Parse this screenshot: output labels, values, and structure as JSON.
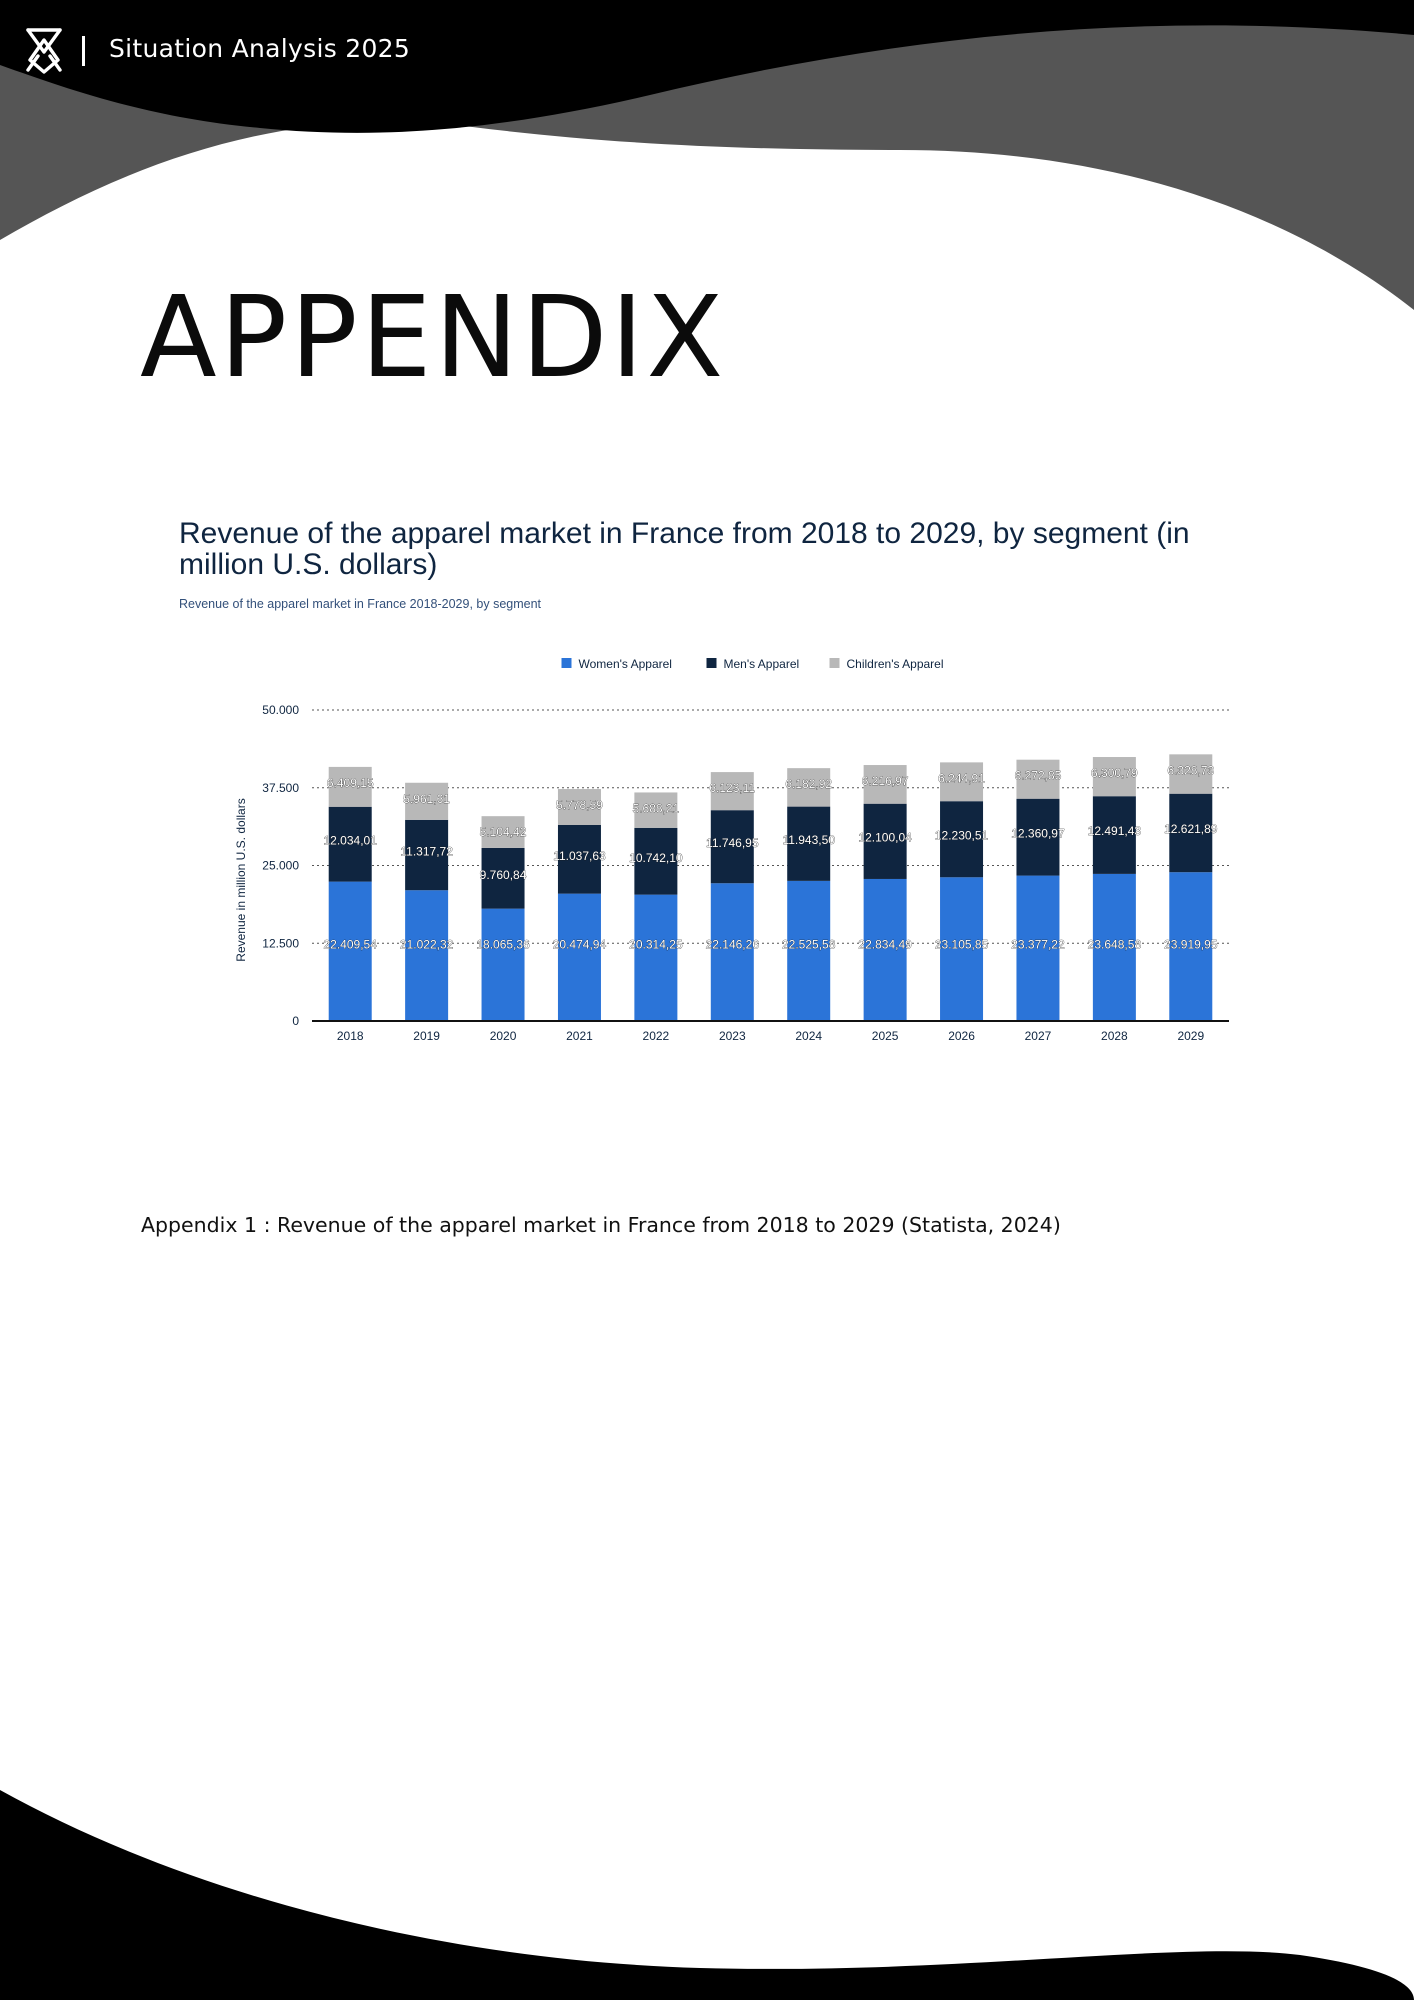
{
  "header": {
    "title": "Situation Analysis 2025",
    "logo_icon": "diamond-monogram-icon"
  },
  "page": {
    "heading": "APPENDIX",
    "caption": "Appendix 1 : Revenue of the apparel market in France from 2018 to 2029 (Statista, 2024)"
  },
  "colors": {
    "women": "#2b74d8",
    "men": "#0f2540",
    "children": "#b8b8b8",
    "header_black": "#000000",
    "header_gray": "#555555"
  },
  "chart_data": {
    "type": "bar",
    "stacked": true,
    "title": "Revenue of the apparel market in France from 2018 to 2029, by segment (in million U.S. dollars)",
    "subtitle": "Revenue of the apparel market in France 2018-2029, by segment",
    "xlabel": "",
    "ylabel": "Revenue in million U.S. dollars",
    "ylim": [
      0,
      50000
    ],
    "yticks": [
      0,
      12500,
      25000,
      37500,
      50000
    ],
    "ytick_labels": [
      "0",
      "12.500",
      "25.000",
      "37.500",
      "50.000"
    ],
    "grid": true,
    "legend_position": "top-center",
    "categories": [
      "2018",
      "2019",
      "2020",
      "2021",
      "2022",
      "2023",
      "2024",
      "2025",
      "2026",
      "2027",
      "2028",
      "2029"
    ],
    "series": [
      {
        "name": "Women's Apparel",
        "color": "#2b74d8",
        "values": [
          22409.54,
          21022.32,
          18065.36,
          20474.94,
          20314.25,
          22146.26,
          22525.58,
          22834.49,
          23105.85,
          23377.22,
          23648.58,
          23919.95
        ],
        "labels": [
          "22.409,54",
          "21.022,32",
          "18.065,36",
          "20.474,94",
          "20.314,25",
          "22.146,26",
          "22.525,58",
          "22.834,49",
          "23.105,85",
          "23.377,22",
          "23.648,58",
          "23.919,95"
        ]
      },
      {
        "name": "Men's Apparel",
        "color": "#0f2540",
        "values": [
          12034.01,
          11317.72,
          9760.84,
          11037.63,
          10742.1,
          11746.95,
          11943.5,
          12100.04,
          12230.51,
          12360.97,
          12491.43,
          12621.89
        ],
        "labels": [
          "12.034,01",
          "11.317,72",
          "9.760,84",
          "11.037,63",
          "10.742,10",
          "11.746,95",
          "11.943,50",
          "12.100,04",
          "12.230,51",
          "12.360,97",
          "12.491,43",
          "12.621,89"
        ]
      },
      {
        "name": "Children's Apparel",
        "color": "#b8b8b8",
        "values": [
          6409.15,
          5961.61,
          5104.42,
          5778.59,
          5688.21,
          6123.11,
          6182.92,
          6216.97,
          6244.91,
          6272.85,
          6300.79,
          6328.73
        ],
        "labels": [
          "6.409,15",
          "5.961,61",
          "5.104,42",
          "5.778,59",
          "5.688,21",
          "6.123,11",
          "6.182,92",
          "6.216,97",
          "6.244,91",
          "6.272,85",
          "6.300,79",
          "6.328,73"
        ]
      }
    ]
  }
}
